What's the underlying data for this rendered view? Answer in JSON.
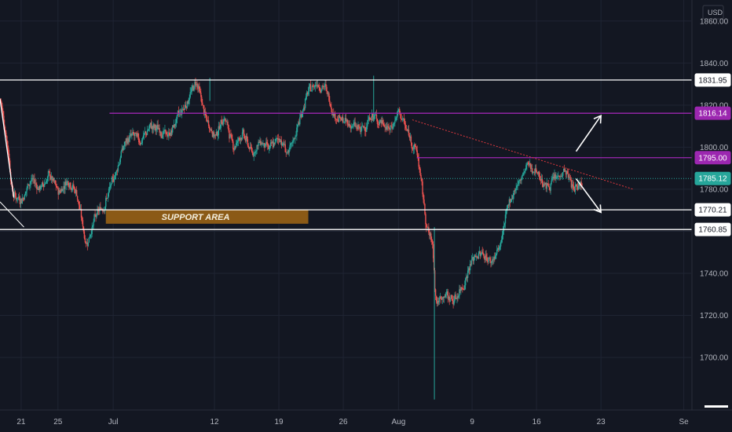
{
  "chart_data": {
    "type": "candlestick",
    "currency_label": "USD",
    "y_ticks": [
      1700,
      1720,
      1740,
      1760,
      1780,
      1800,
      1820,
      1840,
      1860
    ],
    "y_tick_labels": [
      "1700.00",
      "1720.00",
      "1740.00",
      "1760.00",
      "1780.00",
      "1800.00",
      "1820.00",
      "1840.00",
      "1860.00"
    ],
    "ylim": [
      1675,
      1870
    ],
    "x_ticks": [
      {
        "label": "21",
        "day": 0
      },
      {
        "label": "25",
        "day": 4
      },
      {
        "label": "Jul",
        "day": 10
      },
      {
        "label": "12",
        "day": 21
      },
      {
        "label": "19",
        "day": 28
      },
      {
        "label": "26",
        "day": 35
      },
      {
        "label": "Aug",
        "day": 41
      },
      {
        "label": "9",
        "day": 49
      },
      {
        "label": "16",
        "day": 56
      },
      {
        "label": "23",
        "day": 63
      },
      {
        "label": "Se",
        "day": 72
      }
    ],
    "xlim_days": [
      -2.3,
      72.8
    ],
    "last_day": 61,
    "price_path": [
      [
        -2.3,
        1823
      ],
      [
        -1.5,
        1800
      ],
      [
        -1,
        1777
      ],
      [
        0,
        1775
      ],
      [
        1,
        1785
      ],
      [
        2,
        1780
      ],
      [
        3,
        1787
      ],
      [
        4,
        1778
      ],
      [
        5,
        1785
      ],
      [
        6,
        1778
      ],
      [
        7,
        1753
      ],
      [
        8,
        1767
      ],
      [
        9,
        1773
      ],
      [
        10,
        1785
      ],
      [
        11,
        1800
      ],
      [
        12,
        1806
      ],
      [
        13,
        1803
      ],
      [
        14,
        1810
      ],
      [
        15,
        1808
      ],
      [
        16,
        1805
      ],
      [
        17,
        1815
      ],
      [
        18,
        1822
      ],
      [
        19,
        1832
      ],
      [
        20,
        1813
      ],
      [
        21,
        1805
      ],
      [
        22,
        1815
      ],
      [
        23,
        1800
      ],
      [
        24,
        1807
      ],
      [
        25,
        1797
      ],
      [
        26,
        1803
      ],
      [
        27,
        1799
      ],
      [
        28,
        1805
      ],
      [
        29,
        1796
      ],
      [
        30,
        1810
      ],
      [
        31,
        1825
      ],
      [
        32,
        1831
      ],
      [
        33,
        1828
      ],
      [
        34,
        1815
      ],
      [
        35,
        1812
      ],
      [
        36,
        1810
      ],
      [
        37,
        1808
      ],
      [
        38,
        1815
      ],
      [
        39,
        1812
      ],
      [
        40,
        1808
      ],
      [
        41,
        1817
      ],
      [
        42,
        1806
      ],
      [
        43,
        1797
      ],
      [
        44,
        1762
      ],
      [
        44.7,
        1752
      ],
      [
        45,
        1725
      ],
      [
        46,
        1730
      ],
      [
        47,
        1727
      ],
      [
        48,
        1735
      ],
      [
        49,
        1747
      ],
      [
        50,
        1750
      ],
      [
        51,
        1745
      ],
      [
        52,
        1753
      ],
      [
        53,
        1775
      ],
      [
        54,
        1783
      ],
      [
        55,
        1792
      ],
      [
        56,
        1788
      ],
      [
        57,
        1781
      ],
      [
        58,
        1785
      ],
      [
        59,
        1789
      ],
      [
        60,
        1780
      ],
      [
        61,
        1785.12
      ]
    ],
    "horizontal_levels": [
      {
        "name": "level-1831",
        "value": 1831.95,
        "label": "1831.95",
        "color": "#ffffff",
        "from_day": -2.3
      },
      {
        "name": "level-1816",
        "value": 1816.14,
        "label": "1816.14",
        "color": "#9c27b0",
        "from_day": 9.6
      },
      {
        "name": "level-1795",
        "value": 1795.0,
        "label": "1795.00",
        "color": "#9c27b0",
        "from_day": 43
      },
      {
        "name": "level-1770",
        "value": 1770.21,
        "label": "1770.21",
        "color": "#ffffff",
        "from_day": -2.3
      },
      {
        "name": "level-1760",
        "value": 1760.85,
        "label": "1760.85",
        "color": "#ffffff",
        "from_day": -2.3
      }
    ],
    "last_price": {
      "value": 1785.12,
      "label": "1785.12",
      "color": "#26a69a"
    },
    "trendline": {
      "from": [
        42.5,
        1813
      ],
      "to": [
        66.5,
        1780
      ],
      "color": "#e0383e"
    },
    "support_zone": {
      "label": "SUPPORT AREA",
      "from_day": 9.2,
      "to_day": 31.2,
      "top": 1770.2,
      "bottom": 1763.6,
      "color": "#8b5a16"
    },
    "arrows": [
      {
        "name": "arrow-up",
        "from": [
          60.3,
          1798
        ],
        "to": [
          63,
          1815
        ]
      },
      {
        "name": "arrow-down",
        "from": [
          60.3,
          1785
        ],
        "to": [
          63,
          1769
        ]
      }
    ],
    "up_color": "#26a69a",
    "down_color": "#ef5350"
  }
}
